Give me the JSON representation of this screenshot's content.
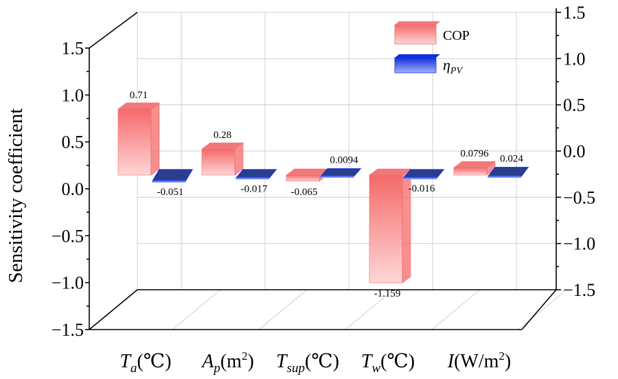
{
  "chart_data": {
    "type": "bar",
    "style": "3d-clustered",
    "categories": [
      {
        "id": "Ta",
        "main": "T",
        "sub": "a",
        "sup": "",
        "unit": "(℃)"
      },
      {
        "id": "Ap",
        "main": "A",
        "sub": "p",
        "sup": "",
        "unit": "(m",
        "unit_sup": "2",
        "unit_end": ")"
      },
      {
        "id": "Tsup",
        "main": "T",
        "sub": "sup",
        "sup": "",
        "unit": "(℃)"
      },
      {
        "id": "Tw",
        "main": "T",
        "sub": "w",
        "sup": "",
        "unit": "(℃)"
      },
      {
        "id": "I",
        "main": "I",
        "sub": "",
        "sup": "",
        "unit": "(W/m",
        "unit_sup": "2",
        "unit_end": ")"
      }
    ],
    "series": [
      {
        "name": "COP",
        "color": "#f46a6a",
        "light": "#ffd0d0",
        "top": "#f2787a",
        "values": [
          0.71,
          0.28,
          -0.065,
          -1.159,
          0.0796
        ],
        "labels": [
          "0.71",
          "0.28",
          "-0.065",
          "-1.159",
          "0.0796"
        ]
      },
      {
        "name": "ηPV",
        "legend_main": "η",
        "legend_sub": "PV",
        "color": "#1030e0",
        "light": "#7a90f0",
        "top": "#2a3f8a",
        "values": [
          -0.051,
          -0.017,
          0.0094,
          -0.016,
          0.024
        ],
        "labels": [
          "-0.051",
          "-0.017",
          "0.0094",
          "-0.016",
          "0.024"
        ]
      }
    ],
    "ylabel": "Sensitivity coefficient",
    "ylim": [
      -1.5,
      1.5
    ],
    "left_ticks": [
      "1.5",
      "1.0",
      "0.5",
      "0.0",
      "−0.5",
      "−1.0",
      "−1.5"
    ],
    "right_ticks": [
      "1.5",
      "1.0",
      "0.5",
      "0.0",
      "−0.5",
      "−1.0",
      "−1.5"
    ],
    "legend_position": "top-right",
    "grid": true
  }
}
